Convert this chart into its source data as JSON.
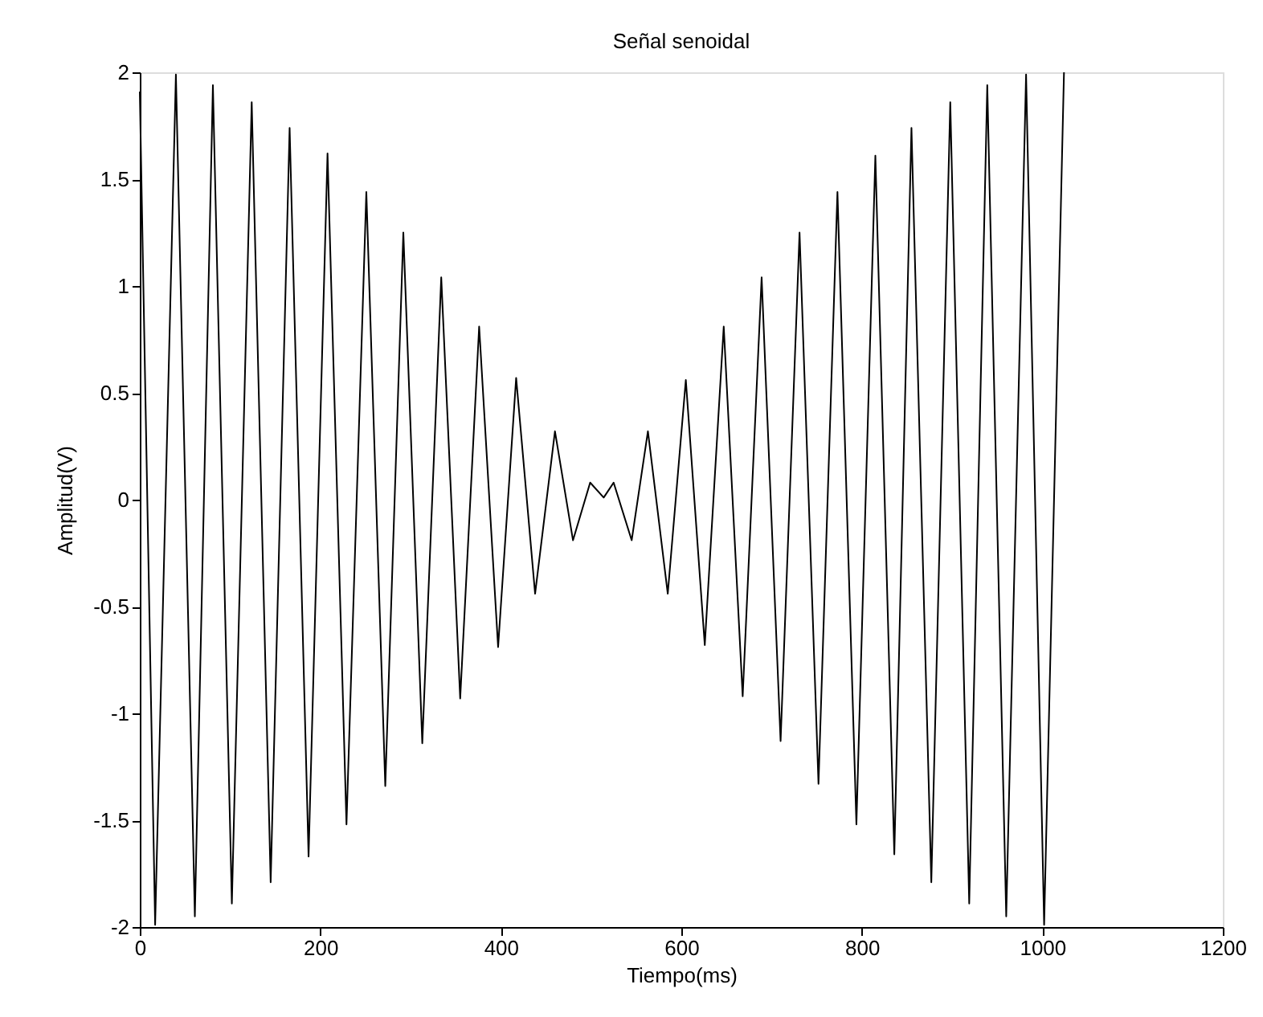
{
  "chart_data": {
    "type": "line",
    "title": "Señal senoidal",
    "xlabel": "Tiempo(ms)",
    "ylabel": "Amplitud(V)",
    "x": [
      0,
      17,
      40,
      61,
      81,
      102,
      124,
      145,
      166,
      187,
      208,
      229,
      251,
      272,
      292,
      313,
      334,
      355,
      376,
      397,
      417,
      438,
      460,
      480,
      499,
      514,
      525,
      545,
      563,
      585,
      605,
      626,
      647,
      668,
      689,
      710,
      731,
      752,
      773,
      794,
      815,
      836,
      855,
      877,
      898,
      919,
      939,
      960,
      982,
      1002,
      1024
    ],
    "series": [
      {
        "color": "#000000",
        "values": [
          1.91,
          -1.99,
          1.99,
          -1.95,
          1.94,
          -1.89,
          1.86,
          -1.79,
          1.74,
          -1.67,
          1.62,
          -1.52,
          1.44,
          -1.34,
          1.25,
          -1.14,
          1.04,
          -0.93,
          0.81,
          -0.69,
          0.57,
          -0.44,
          0.32,
          -0.19,
          0.08,
          0.01,
          0.08,
          -0.19,
          0.32,
          -0.44,
          0.56,
          -0.68,
          0.81,
          -0.92,
          1.04,
          -1.13,
          1.25,
          -1.33,
          1.44,
          -1.52,
          1.61,
          -1.66,
          1.74,
          -1.79,
          1.86,
          -1.89,
          1.94,
          -1.95,
          1.99,
          -1.99,
          2.0
        ]
      }
    ],
    "xlim": [
      0,
      1200
    ],
    "xticks": [
      0,
      200,
      400,
      600,
      800,
      1000,
      1200
    ],
    "ylim": [
      -2,
      2
    ],
    "yticks": [
      -2,
      -1.5,
      -1,
      -0.5,
      0,
      0.5,
      1,
      1.5,
      2
    ],
    "grid": false,
    "legend": false,
    "marker": "none",
    "line_style": "solid"
  }
}
